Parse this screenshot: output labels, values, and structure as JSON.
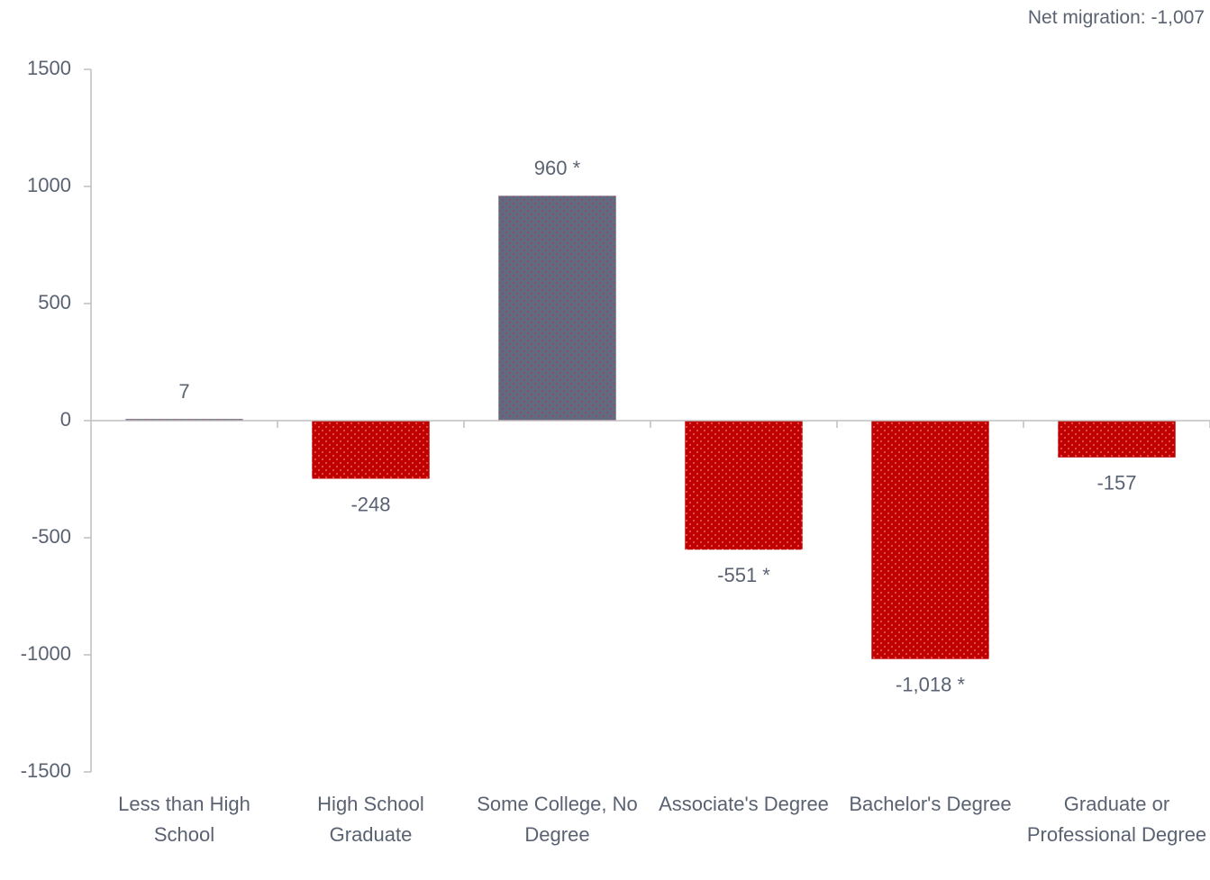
{
  "chart_data": {
    "type": "bar",
    "annotation": "Net migration: -1,007",
    "categories": [
      "Less than High School",
      "High School Graduate",
      "Some College, No Degree",
      "Associate's Degree",
      "Bachelor's Degree",
      "Graduate or Professional Degree"
    ],
    "values": [
      7,
      -248,
      960,
      -551,
      -1018,
      -157
    ],
    "value_labels": [
      "7",
      "-248",
      "960 *",
      "-551 *",
      "-1,018 *",
      "-157"
    ],
    "colors": [
      "#5f6b80",
      "#c00000",
      "#5f6b80",
      "#c00000",
      "#c00000",
      "#c00000"
    ],
    "ylim": [
      -1500,
      1500
    ],
    "yticks": [
      -1500,
      -1000,
      -500,
      0,
      500,
      1000,
      1500
    ],
    "grid": false
  }
}
